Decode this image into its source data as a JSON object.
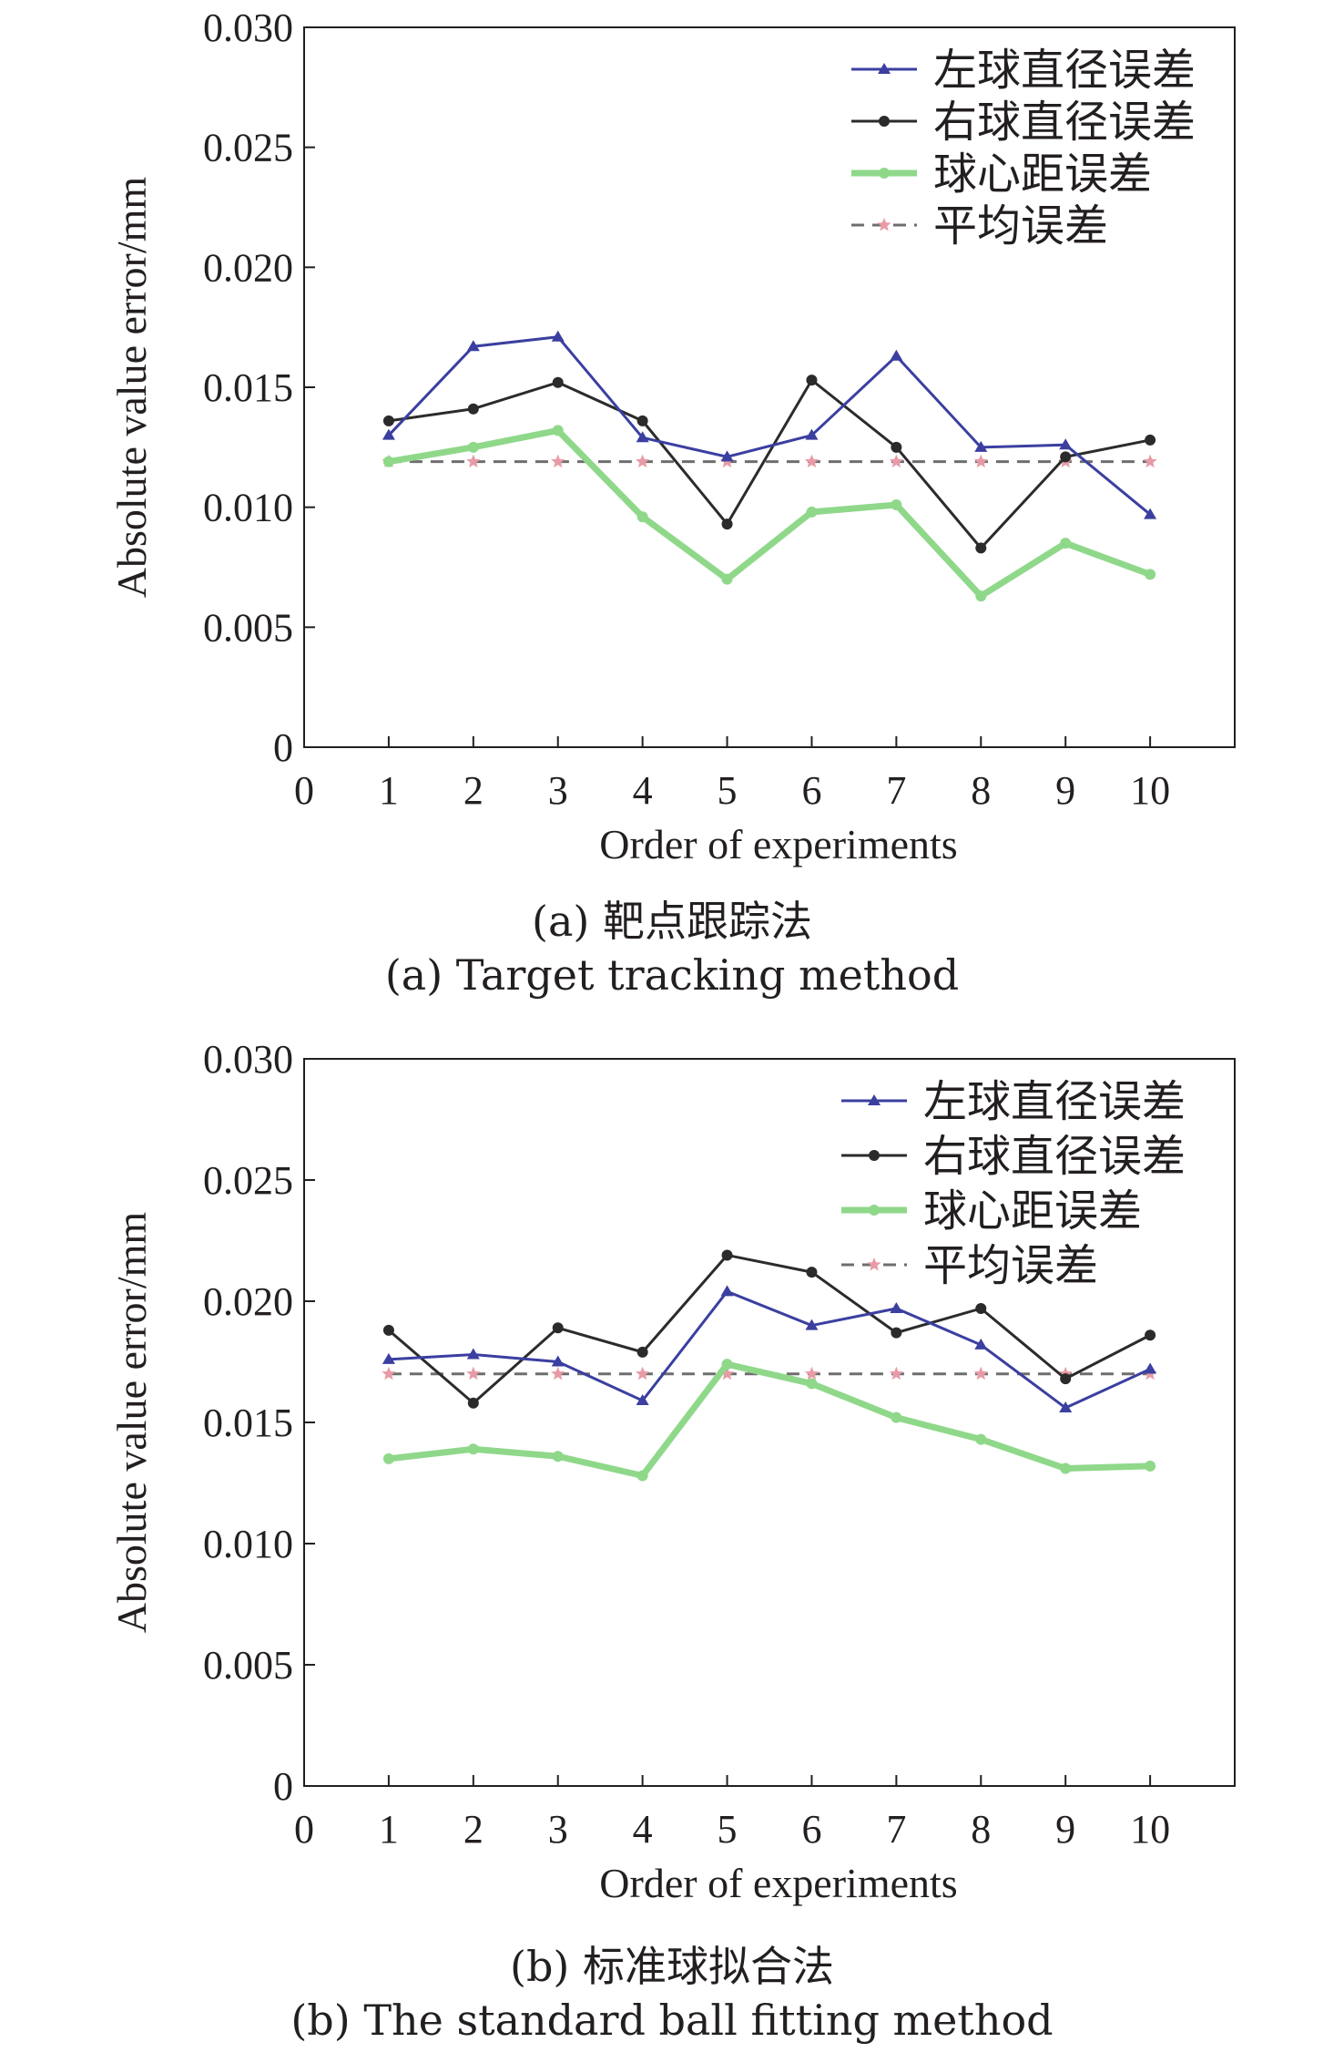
{
  "chart_data": [
    {
      "type": "line",
      "caption_cn": "(a) 靶点跟踪法",
      "caption_en": "(a) Target tracking method",
      "xlabel": "Order of experiments",
      "ylabel": "Absolute value error/mm",
      "xlim": [
        0,
        11
      ],
      "ylim": [
        0,
        0.03
      ],
      "xticks": [
        "0",
        "1",
        "2",
        "3",
        "4",
        "5",
        "6",
        "7",
        "8",
        "9",
        "10"
      ],
      "yticks": [
        "0",
        "0.005",
        "0.010",
        "0.015",
        "0.020",
        "0.025",
        "0.030"
      ],
      "x": [
        1,
        2,
        3,
        4,
        5,
        6,
        7,
        8,
        9,
        10
      ],
      "legend_position": "top-right",
      "series": [
        {
          "name": "左球直径误差",
          "color": "#3b3fa0",
          "marker": "triangle",
          "dashed": false,
          "values": [
            0.013,
            0.0167,
            0.0171,
            0.0129,
            0.0121,
            0.013,
            0.0163,
            0.0125,
            0.0126,
            0.0097
          ]
        },
        {
          "name": "右球直径误差",
          "color": "#2b2b2b",
          "marker": "circle",
          "dashed": false,
          "values": [
            0.0136,
            0.0141,
            0.0152,
            0.0136,
            0.0093,
            0.0153,
            0.0125,
            0.0083,
            0.0121,
            0.0128
          ]
        },
        {
          "name": "球心距误差",
          "color": "#8fd88a",
          "marker": "circle",
          "dashed": false,
          "values": [
            0.0119,
            0.0125,
            0.0132,
            0.0096,
            0.007,
            0.0098,
            0.0101,
            0.0063,
            0.0085,
            0.0072
          ]
        },
        {
          "name": "平均误差",
          "color": "#e89aa6",
          "marker": "star",
          "dashed": true,
          "values": [
            0.0119,
            0.0119,
            0.0119,
            0.0119,
            0.0119,
            0.0119,
            0.0119,
            0.0119,
            0.0119,
            0.0119
          ]
        }
      ]
    },
    {
      "type": "line",
      "caption_cn": "(b) 标准球拟合法",
      "caption_en": "(b) The standard ball fitting method",
      "xlabel": "Order of experiments",
      "ylabel": "Absolute value error/mm",
      "xlim": [
        0,
        11
      ],
      "ylim": [
        0,
        0.03
      ],
      "xticks": [
        "0",
        "1",
        "2",
        "3",
        "4",
        "5",
        "6",
        "7",
        "8",
        "9",
        "10"
      ],
      "yticks": [
        "0",
        "0.005",
        "0.010",
        "0.015",
        "0.020",
        "0.025",
        "0.030"
      ],
      "x": [
        1,
        2,
        3,
        4,
        5,
        6,
        7,
        8,
        9,
        10
      ],
      "legend_position": "top-right",
      "series": [
        {
          "name": "左球直径误差",
          "color": "#3b3fa0",
          "marker": "triangle",
          "dashed": false,
          "values": [
            0.0176,
            0.0178,
            0.0175,
            0.0159,
            0.0204,
            0.019,
            0.0197,
            0.0182,
            0.0156,
            0.0172
          ]
        },
        {
          "name": "右球直径误差",
          "color": "#2b2b2b",
          "marker": "circle",
          "dashed": false,
          "values": [
            0.0188,
            0.0158,
            0.0189,
            0.0179,
            0.0219,
            0.0212,
            0.0187,
            0.0197,
            0.0168,
            0.0186
          ]
        },
        {
          "name": "球心距误差",
          "color": "#8fd88a",
          "marker": "circle",
          "dashed": false,
          "values": [
            0.0135,
            0.0139,
            0.0136,
            0.0128,
            0.0174,
            0.0166,
            0.0152,
            0.0143,
            0.0131,
            0.0132
          ]
        },
        {
          "name": "平均误差",
          "color": "#e89aa6",
          "marker": "star",
          "dashed": true,
          "values": [
            0.017,
            0.017,
            0.017,
            0.017,
            0.017,
            0.017,
            0.017,
            0.017,
            0.017,
            0.017
          ]
        }
      ]
    }
  ]
}
